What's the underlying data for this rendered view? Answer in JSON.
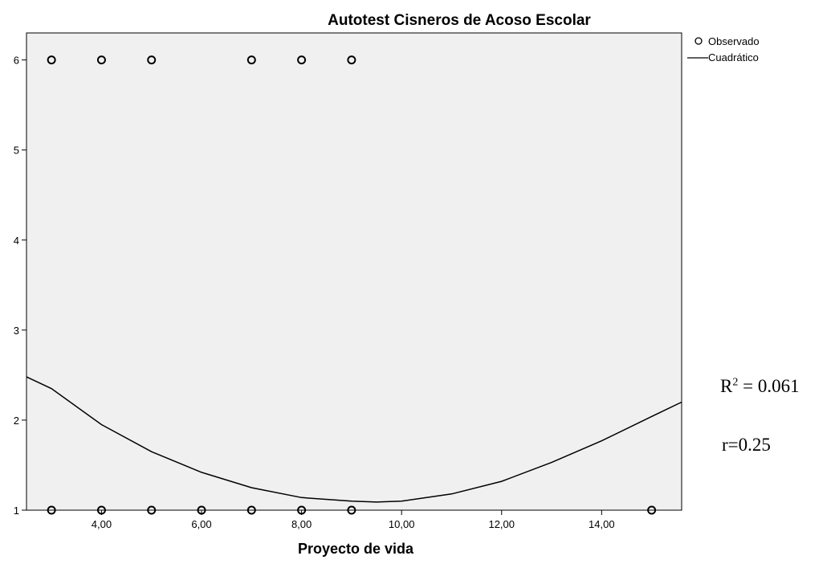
{
  "chart_data": {
    "type": "scatter",
    "title": "Autotest Cisneros de Acoso Escolar",
    "xlabel": "Proyecto de vida",
    "ylabel": "",
    "xlim": [
      2.5,
      15.6
    ],
    "ylim": [
      1,
      6.3
    ],
    "x_ticks": [
      4,
      6,
      8,
      10,
      12,
      14
    ],
    "x_tick_labels": [
      "4,00",
      "6,00",
      "8,00",
      "10,00",
      "12,00",
      "14,00"
    ],
    "y_ticks": [
      1,
      2,
      3,
      4,
      5,
      6
    ],
    "y_tick_labels": [
      "1",
      "2",
      "3",
      "4",
      "5",
      "6"
    ],
    "grid": false,
    "legend_position": "top-right",
    "series": [
      {
        "name": "Observado",
        "type": "scatter",
        "points": [
          {
            "x": 3,
            "y": 6
          },
          {
            "x": 4,
            "y": 6
          },
          {
            "x": 5,
            "y": 6
          },
          {
            "x": 7,
            "y": 6
          },
          {
            "x": 8,
            "y": 6
          },
          {
            "x": 9,
            "y": 6
          },
          {
            "x": 3,
            "y": 1
          },
          {
            "x": 4,
            "y": 1
          },
          {
            "x": 5,
            "y": 1
          },
          {
            "x": 6,
            "y": 1
          },
          {
            "x": 7,
            "y": 1
          },
          {
            "x": 8,
            "y": 1
          },
          {
            "x": 9,
            "y": 1
          },
          {
            "x": 15,
            "y": 1
          }
        ]
      },
      {
        "name": "Cuadrático",
        "type": "line",
        "points": [
          {
            "x": 2.5,
            "y": 2.48
          },
          {
            "x": 3.0,
            "y": 2.35
          },
          {
            "x": 4.0,
            "y": 1.95
          },
          {
            "x": 5.0,
            "y": 1.65
          },
          {
            "x": 6.0,
            "y": 1.42
          },
          {
            "x": 7.0,
            "y": 1.25
          },
          {
            "x": 8.0,
            "y": 1.14
          },
          {
            "x": 9.0,
            "y": 1.1
          },
          {
            "x": 9.5,
            "y": 1.09
          },
          {
            "x": 10.0,
            "y": 1.1
          },
          {
            "x": 11.0,
            "y": 1.18
          },
          {
            "x": 12.0,
            "y": 1.32
          },
          {
            "x": 13.0,
            "y": 1.53
          },
          {
            "x": 14.0,
            "y": 1.77
          },
          {
            "x": 15.0,
            "y": 2.04
          },
          {
            "x": 15.6,
            "y": 2.2
          }
        ]
      }
    ],
    "colors": {
      "plot_background": "#f0f0f0",
      "marker": "#000000",
      "line": "#000000"
    }
  },
  "annotations": {
    "r2_base": "R",
    "r2_exp": "2",
    "r2_value": " = 0.061",
    "r_text": "r=0.25"
  }
}
